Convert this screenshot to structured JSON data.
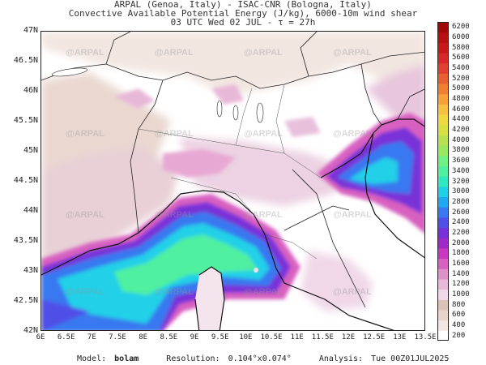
{
  "header": {
    "line1": "ARPAL (Genoa, Italy)  -  ISAC-CNR (Bologna, Italy)",
    "line2": "Convective Available Potential Energy (J/kg), 6000-10m wind shear",
    "line3": "03 UTC Wed 02 JUL  -  τ = 27h"
  },
  "map": {
    "watermark": "@ARPAL",
    "lat_labels": [
      "47N",
      "46.5N",
      "46N",
      "45.5N",
      "45N",
      "44.5N",
      "44N",
      "43.5N",
      "43N",
      "42.5N",
      "42N"
    ],
    "lon_labels": [
      "6E",
      "6.5E",
      "7E",
      "7.5E",
      "8E",
      "8.5E",
      "9E",
      "9.5E",
      "10E",
      "10.5E",
      "11E",
      "11.5E",
      "12E",
      "12.5E",
      "13E",
      "13.5E"
    ]
  },
  "colorbar": {
    "levels": [
      "200",
      "400",
      "600",
      "800",
      "1000",
      "1200",
      "1400",
      "1600",
      "1800",
      "2000",
      "2200",
      "2400",
      "2600",
      "2800",
      "3000",
      "3200",
      "3400",
      "3600",
      "3800",
      "4000",
      "4200",
      "4400",
      "4600",
      "4800",
      "5000",
      "5200",
      "5400",
      "5600",
      "5800",
      "6000",
      "6200"
    ],
    "colors": [
      "#ffffff",
      "#f2e6e1",
      "#e8d4cb",
      "#dcc2b6",
      "#f0d8e8",
      "#e8b8d8",
      "#e090c8",
      "#d860c0",
      "#c838c0",
      "#a028c8",
      "#7830d8",
      "#5050e8",
      "#3878f0",
      "#20a8f0",
      "#20d0e8",
      "#30e8c0",
      "#50f0a0",
      "#70f080",
      "#98e860",
      "#b8e050",
      "#d8e040",
      "#f0d840",
      "#f8c040",
      "#f8a038",
      "#f08030",
      "#e86030",
      "#e04030",
      "#d82828",
      "#c81818",
      "#b81010",
      "#a00808"
    ]
  },
  "footer": {
    "model_label": "Model:",
    "model_value": "bolam",
    "resolution_label": "Resolution:",
    "resolution_value": "0.104°x0.074°",
    "analysis_label": "Analysis:",
    "analysis_value": "Tue 00Z01JUL2025"
  }
}
